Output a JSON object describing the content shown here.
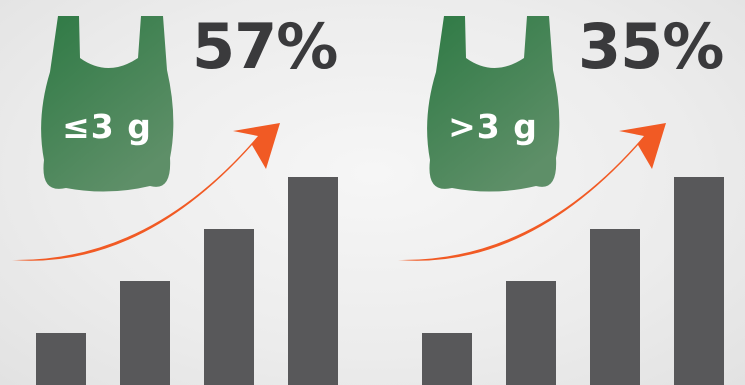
{
  "colors": {
    "bag": "#3d7a4c",
    "bar": "#58585a",
    "arrow": "#f15a24",
    "text": "#3a3a3c"
  },
  "chart_data": [
    {
      "type": "bar",
      "bag_label": "≤3 g",
      "headline": "57%",
      "values": [
        1,
        2,
        3,
        4
      ]
    },
    {
      "type": "bar",
      "bag_label": ">3 g",
      "headline": "35%",
      "values": [
        1,
        2,
        3,
        4
      ]
    }
  ]
}
